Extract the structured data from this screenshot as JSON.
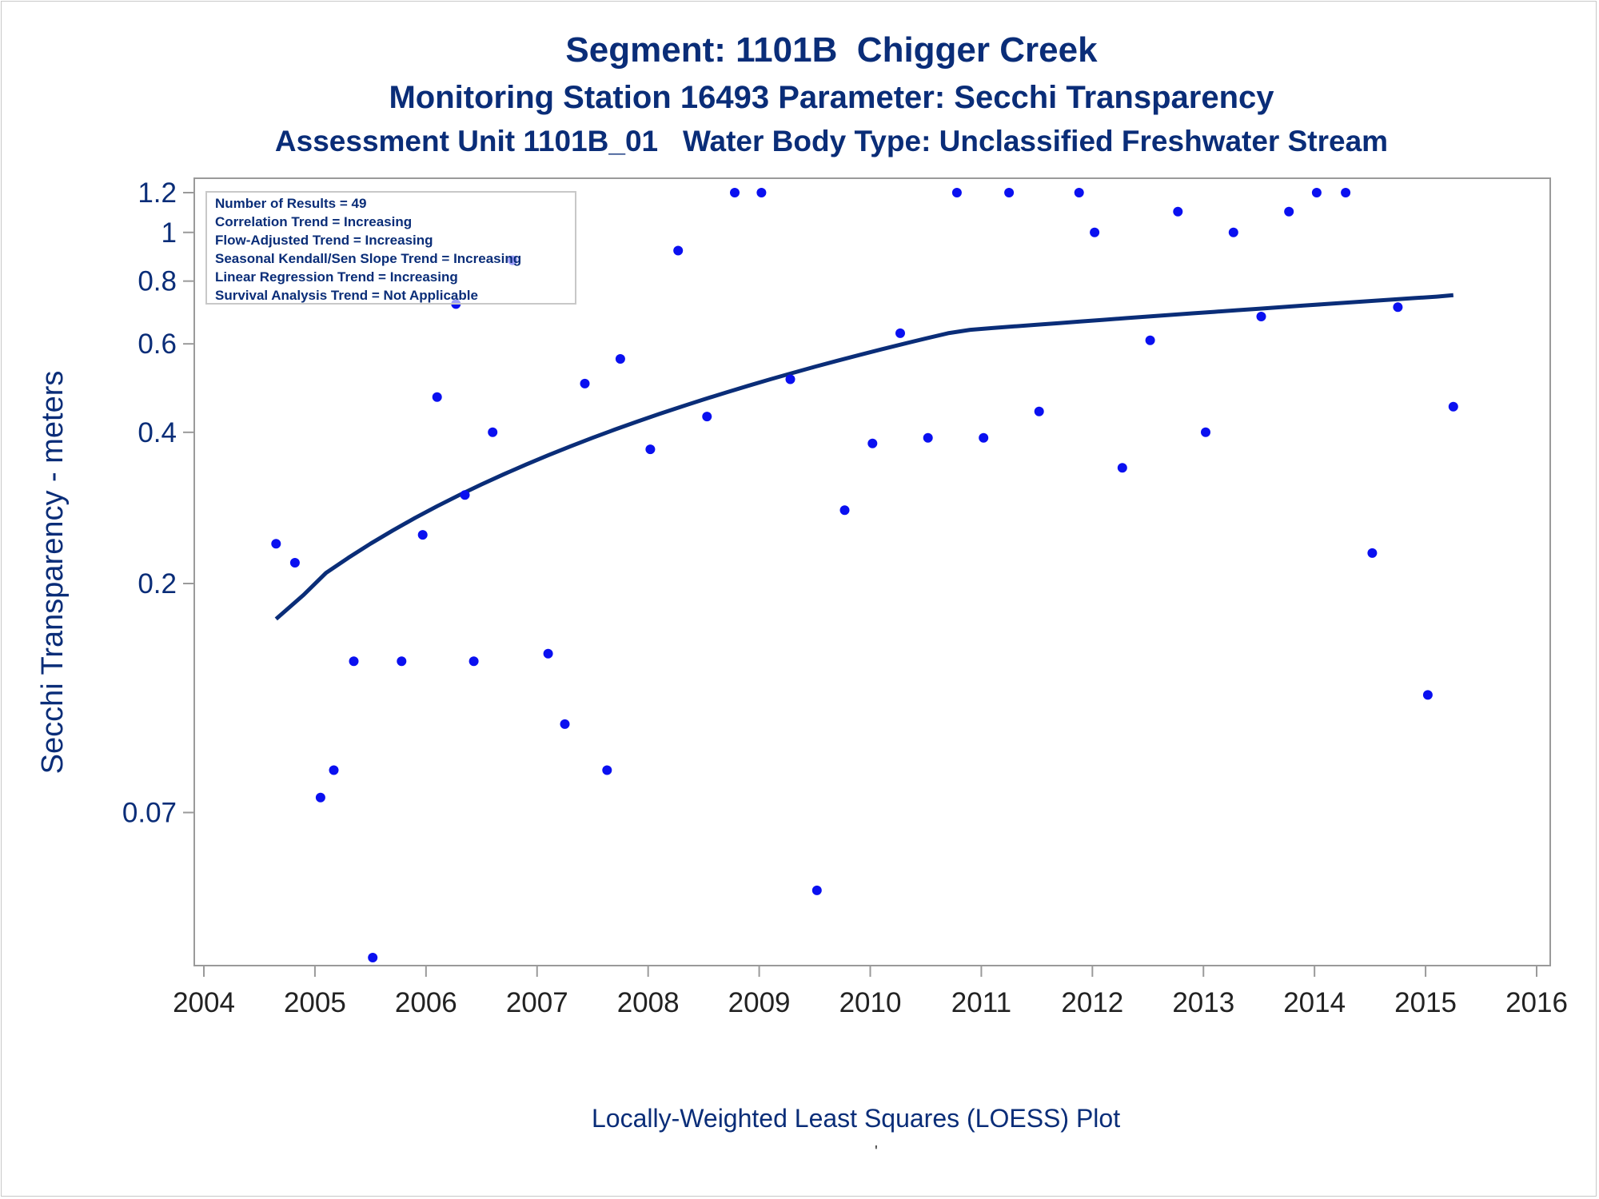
{
  "header": {
    "title": "Segment: 1101B  Chigger Creek",
    "subtitle1": "Monitoring Station 16493 Parameter: Secchi Transparency",
    "subtitle2": "Assessment Unit 1101B_01   Water Body Type: Unclassified Freshwater Stream"
  },
  "footnote": "Locally-Weighted Least Squares (LOESS) Plot",
  "stray_mark": "'",
  "colors": {
    "text": "#0a2d78",
    "points": "#0a10f0",
    "curve": "#0a2d78",
    "axis": "#9a9a9a"
  },
  "chart_data": {
    "type": "scatter",
    "ylabel": "Secchi Transparency - meters",
    "xlabel": "",
    "y_scale": "log",
    "xlim": [
      2004,
      2016
    ],
    "ylim": [
      0.036,
      1.2
    ],
    "x_ticks": [
      "2004",
      "2005",
      "2006",
      "2007",
      "2008",
      "2009",
      "2010",
      "2011",
      "2012",
      "2013",
      "2014",
      "2015",
      "2016"
    ],
    "y_ticks": [
      {
        "value": 0.07,
        "label": "0.07"
      },
      {
        "value": 0.2,
        "label": "0.2"
      },
      {
        "value": 0.4,
        "label": "0.4"
      },
      {
        "value": 0.6,
        "label": "0.6"
      },
      {
        "value": 0.8,
        "label": "0.8"
      },
      {
        "value": 1.0,
        "label": "1"
      },
      {
        "value": 1.2,
        "label": "1.2"
      }
    ],
    "legend": {
      "placement": "top-left",
      "lines": [
        "Number of Results = 49",
        "Correlation Trend = Increasing",
        "Flow-Adjusted Trend = Increasing",
        "Seasonal Kendall/Sen Slope Trend = Increasing",
        "Linear Regression Trend = Increasing",
        "Survival Analysis Trend = Not Applicable"
      ]
    },
    "series": [
      {
        "kind": "points",
        "points": [
          [
            2004.65,
            0.24
          ],
          [
            2004.82,
            0.22
          ],
          [
            2005.05,
            0.075
          ],
          [
            2005.17,
            0.085
          ],
          [
            2005.35,
            0.14
          ],
          [
            2005.52,
            0.036
          ],
          [
            2005.78,
            0.14
          ],
          [
            2005.97,
            0.25
          ],
          [
            2006.1,
            0.47
          ],
          [
            2006.27,
            0.72
          ],
          [
            2006.35,
            0.3
          ],
          [
            2006.43,
            0.14
          ],
          [
            2006.6,
            0.4
          ],
          [
            2006.78,
            0.88
          ],
          [
            2007.1,
            0.145
          ],
          [
            2007.25,
            0.105
          ],
          [
            2007.43,
            0.5
          ],
          [
            2007.63,
            0.085
          ],
          [
            2007.75,
            0.56
          ],
          [
            2008.02,
            0.37
          ],
          [
            2008.27,
            0.92
          ],
          [
            2008.53,
            0.43
          ],
          [
            2008.78,
            1.2
          ],
          [
            2009.02,
            1.2
          ],
          [
            2009.28,
            0.51
          ],
          [
            2009.52,
            0.049
          ],
          [
            2009.77,
            0.28
          ],
          [
            2010.02,
            0.38
          ],
          [
            2010.27,
            0.63
          ],
          [
            2010.52,
            0.39
          ],
          [
            2010.78,
            1.2
          ],
          [
            2011.02,
            0.39
          ],
          [
            2011.25,
            1.2
          ],
          [
            2011.52,
            0.44
          ],
          [
            2011.88,
            1.2
          ],
          [
            2012.02,
            1.0
          ],
          [
            2012.27,
            0.34
          ],
          [
            2012.52,
            0.61
          ],
          [
            2012.77,
            1.1
          ],
          [
            2013.02,
            0.4
          ],
          [
            2013.27,
            1.0
          ],
          [
            2013.52,
            0.68
          ],
          [
            2013.77,
            1.1
          ],
          [
            2014.02,
            1.2
          ],
          [
            2014.28,
            1.2
          ],
          [
            2014.52,
            0.23
          ],
          [
            2014.75,
            0.71
          ],
          [
            2015.02,
            0.12
          ],
          [
            2015.25,
            0.45
          ]
        ]
      },
      {
        "kind": "loess",
        "points": [
          [
            2004.65,
            0.17
          ],
          [
            2004.9,
            0.19
          ],
          [
            2005.1,
            0.21
          ],
          [
            2005.3,
            0.225
          ],
          [
            2005.5,
            0.24
          ],
          [
            2005.7,
            0.255
          ],
          [
            2005.9,
            0.27
          ],
          [
            2006.1,
            0.285
          ],
          [
            2006.3,
            0.3
          ],
          [
            2006.5,
            0.315
          ],
          [
            2006.7,
            0.33
          ],
          [
            2006.9,
            0.345
          ],
          [
            2007.1,
            0.36
          ],
          [
            2007.3,
            0.375
          ],
          [
            2007.5,
            0.39
          ],
          [
            2007.7,
            0.405
          ],
          [
            2007.9,
            0.42
          ],
          [
            2008.1,
            0.435
          ],
          [
            2008.3,
            0.45
          ],
          [
            2008.5,
            0.465
          ],
          [
            2008.7,
            0.48
          ],
          [
            2008.9,
            0.495
          ],
          [
            2009.1,
            0.51
          ],
          [
            2009.3,
            0.525
          ],
          [
            2009.5,
            0.54
          ],
          [
            2009.7,
            0.555
          ],
          [
            2009.9,
            0.57
          ],
          [
            2010.1,
            0.585
          ],
          [
            2010.3,
            0.6
          ],
          [
            2010.5,
            0.615
          ],
          [
            2010.7,
            0.63
          ],
          [
            2010.9,
            0.64
          ],
          [
            2011.1,
            0.645
          ],
          [
            2011.3,
            0.65
          ],
          [
            2011.5,
            0.655
          ],
          [
            2011.7,
            0.66
          ],
          [
            2011.9,
            0.665
          ],
          [
            2012.1,
            0.67
          ],
          [
            2012.3,
            0.675
          ],
          [
            2012.5,
            0.68
          ],
          [
            2012.7,
            0.685
          ],
          [
            2012.9,
            0.69
          ],
          [
            2013.1,
            0.695
          ],
          [
            2013.3,
            0.7
          ],
          [
            2013.5,
            0.705
          ],
          [
            2013.7,
            0.71
          ],
          [
            2013.9,
            0.715
          ],
          [
            2014.1,
            0.72
          ],
          [
            2014.3,
            0.725
          ],
          [
            2014.5,
            0.73
          ],
          [
            2014.7,
            0.735
          ],
          [
            2014.9,
            0.74
          ],
          [
            2015.1,
            0.745
          ],
          [
            2015.25,
            0.75
          ]
        ]
      }
    ]
  }
}
